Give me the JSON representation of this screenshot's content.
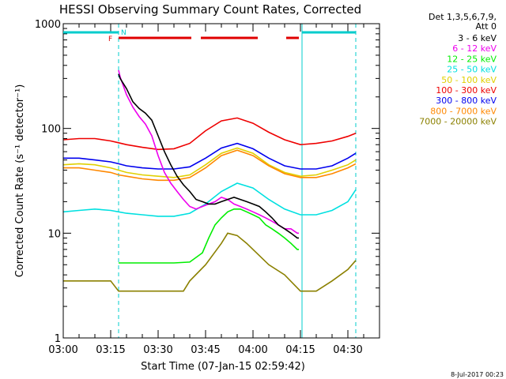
{
  "chart_data": {
    "type": "line",
    "title": "HESSI Observing Summary Count Rates, Corrected",
    "xlabel": "Start Time (07-Jan-15 02:59:42)",
    "ylabel": "Corrected Count Rate (s⁻¹ detector⁻¹)",
    "yscale": "log",
    "ylim": [
      1,
      1000
    ],
    "xlim_min": [
      0,
      100
    ],
    "x_unit": "minutes after 03:00",
    "x_ticks": [
      {
        "t": 0,
        "label": "03:00"
      },
      {
        "t": 15,
        "label": "03:15"
      },
      {
        "t": 30,
        "label": "03:30"
      },
      {
        "t": 45,
        "label": "03:45"
      },
      {
        "t": 60,
        "label": "04:00"
      },
      {
        "t": 75,
        "label": "04:15"
      },
      {
        "t": 90,
        "label": "04:30"
      }
    ],
    "y_ticks": [
      {
        "v": 1,
        "label": "1"
      },
      {
        "v": 10,
        "label": "10"
      },
      {
        "v": 100,
        "label": "100"
      },
      {
        "v": 1000,
        "label": "1000"
      }
    ],
    "legend_header": [
      "Det 1,3,5,6,7,9,",
      "Att 0"
    ],
    "legend_position": "right",
    "flag_labels": {
      "flare": "F",
      "night": "N"
    },
    "flag_colors": {
      "night": "#00cccc",
      "flare": "#e00000"
    },
    "night_intervals": [
      [
        0,
        17.5
      ],
      [
        75.5,
        92.5
      ]
    ],
    "flare_intervals": [
      [
        17.5,
        40.5
      ],
      [
        43.5,
        61.5
      ],
      [
        70.5,
        74.5
      ]
    ],
    "boundary_lines": {
      "solid": {
        "color": "#00cccc",
        "t": [
          0,
          75.5
        ]
      },
      "dashed": {
        "color": "#00cccc",
        "t": [
          17.5,
          92.5
        ]
      }
    },
    "series": [
      {
        "name": "3 - 6 keV",
        "color": "#000000",
        "x": [
          17.5,
          18,
          20,
          22,
          24,
          26,
          28,
          30,
          32,
          34,
          36,
          38,
          40,
          42,
          44,
          46,
          48,
          50,
          52,
          54,
          56,
          58,
          60,
          62,
          64,
          66,
          68,
          70,
          72,
          74,
          74.5
        ],
        "y": [
          330,
          300,
          240,
          180,
          155,
          140,
          120,
          85,
          60,
          45,
          35,
          29,
          25,
          21,
          20,
          19,
          19,
          20,
          21,
          22,
          21,
          20,
          19,
          18,
          16,
          14,
          12,
          11,
          10,
          9,
          9
        ]
      },
      {
        "name": "6 - 12 keV",
        "color": "#ee00ee",
        "x": [
          17.5,
          18,
          20,
          22,
          24,
          26,
          28,
          30,
          32,
          34,
          36,
          38,
          40,
          42,
          44,
          46,
          48,
          50,
          52,
          54,
          56,
          58,
          60,
          62,
          64,
          66,
          68,
          70,
          72,
          74,
          74.5
        ],
        "y": [
          360,
          310,
          210,
          160,
          130,
          110,
          85,
          55,
          38,
          30,
          25,
          21,
          18,
          17,
          18,
          19,
          20,
          22,
          21,
          19,
          18,
          17,
          16,
          15,
          14,
          13,
          12,
          11,
          11,
          10,
          10
        ]
      },
      {
        "name": "12 - 25 keV",
        "color": "#00ee00",
        "x": [
          17.5,
          20,
          25,
          30,
          35,
          40,
          44,
          46,
          48,
          50,
          52,
          54,
          56,
          58,
          60,
          62,
          64,
          66,
          68,
          70,
          72,
          74,
          74.5
        ],
        "y": [
          5.2,
          5.2,
          5.2,
          5.2,
          5.2,
          5.3,
          6.5,
          9,
          12,
          14,
          16,
          17,
          17,
          16,
          15,
          14,
          12,
          11,
          10,
          9,
          8,
          7,
          7
        ]
      },
      {
        "name": "25 - 50 keV",
        "color": "#00e0e0",
        "x": [
          0,
          5,
          10,
          15,
          17.5,
          20,
          25,
          30,
          35,
          40,
          45,
          50,
          55,
          60,
          65,
          70,
          75,
          80,
          85,
          90,
          92.5
        ],
        "y": [
          16,
          16.5,
          17,
          16.5,
          16,
          15.5,
          15,
          14.5,
          14.5,
          15.5,
          19,
          25,
          30,
          27,
          21,
          17,
          15,
          15,
          16.5,
          20,
          26
        ]
      },
      {
        "name": "50 - 100 keV",
        "color": "#e0d000",
        "x": [
          0,
          5,
          10,
          15,
          17.5,
          20,
          25,
          30,
          35,
          40,
          45,
          50,
          55,
          60,
          65,
          70,
          75,
          80,
          85,
          90,
          92.5
        ],
        "y": [
          45,
          46,
          45,
          42,
          40,
          38,
          36,
          35,
          34,
          36,
          45,
          58,
          65,
          58,
          45,
          38,
          35,
          36,
          40,
          45,
          50
        ]
      },
      {
        "name": "100 - 300 keV",
        "color": "#ee0000",
        "x": [
          0,
          5,
          10,
          15,
          17.5,
          20,
          25,
          30,
          35,
          40,
          45,
          50,
          55,
          60,
          65,
          70,
          75,
          80,
          85,
          90,
          92.5
        ],
        "y": [
          78,
          80,
          80,
          76,
          73,
          70,
          66,
          63,
          64,
          72,
          95,
          118,
          126,
          112,
          92,
          78,
          70,
          72,
          76,
          84,
          90
        ]
      },
      {
        "name": "300 - 800 keV",
        "color": "#0000ee",
        "x": [
          0,
          5,
          10,
          15,
          17.5,
          20,
          25,
          30,
          35,
          40,
          45,
          50,
          55,
          60,
          65,
          70,
          75,
          80,
          85,
          90,
          92.5
        ],
        "y": [
          52,
          52,
          50,
          48,
          46,
          44,
          42,
          41,
          41,
          43,
          52,
          65,
          72,
          64,
          52,
          44,
          41,
          41,
          44,
          52,
          58
        ]
      },
      {
        "name": "800 - 7000 keV",
        "color": "#ff8800",
        "x": [
          0,
          5,
          10,
          15,
          17.5,
          20,
          25,
          30,
          35,
          40,
          45,
          50,
          55,
          60,
          65,
          70,
          75,
          80,
          85,
          90,
          92.5
        ],
        "y": [
          42,
          42,
          40,
          38,
          36,
          35,
          33,
          32,
          32,
          34,
          42,
          55,
          62,
          55,
          44,
          37,
          34,
          34,
          37,
          42,
          46
        ]
      },
      {
        "name": "7000 - 20000 keV",
        "color": "#8b8000",
        "x": [
          0,
          5,
          10,
          15,
          17.5,
          20,
          25,
          30,
          35,
          38,
          40,
          45,
          50,
          52,
          55,
          58,
          60,
          65,
          70,
          75,
          80,
          85,
          90,
          92.5
        ],
        "y": [
          3.5,
          3.5,
          3.5,
          3.5,
          2.8,
          2.8,
          2.8,
          2.8,
          2.8,
          2.8,
          3.5,
          5,
          8,
          10,
          9.5,
          8,
          7,
          5,
          4,
          2.8,
          2.8,
          3.5,
          4.5,
          5.5
        ]
      }
    ]
  },
  "footer_date": "8-Jul-2017 00:23"
}
